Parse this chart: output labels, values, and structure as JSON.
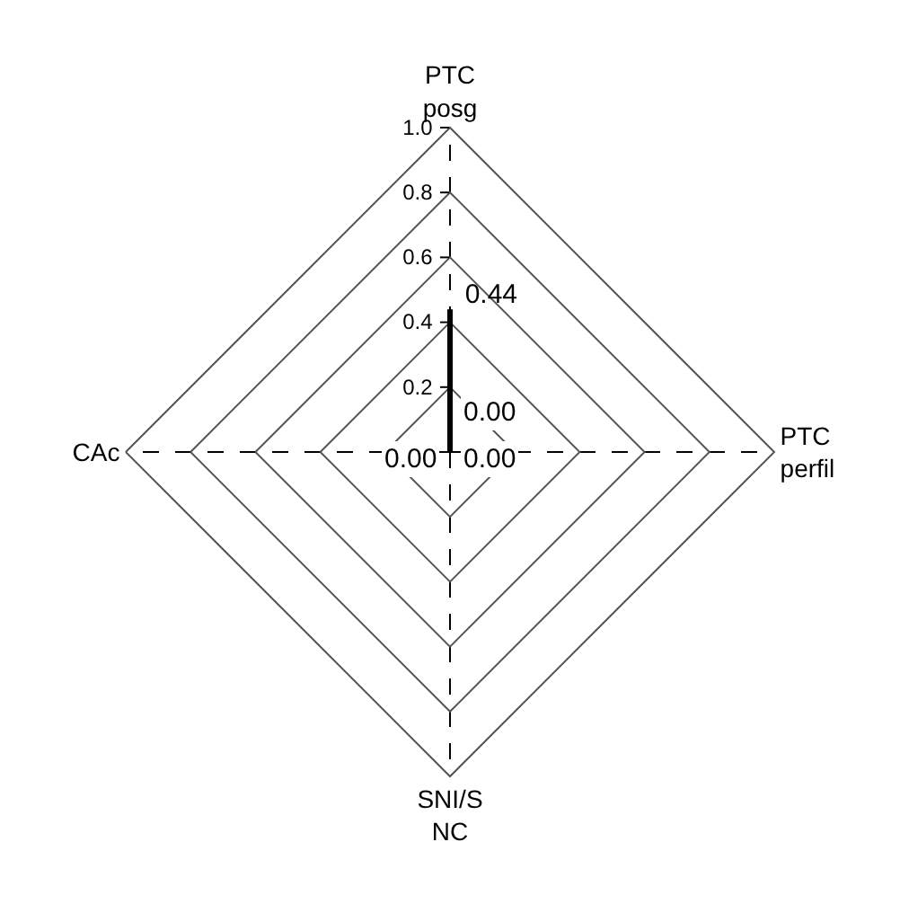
{
  "chart_data": {
    "type": "radar",
    "categories": [
      "PTC\nposg",
      "PTC\nperfil",
      "SNI/S\nNC",
      "CAc"
    ],
    "series": [
      {
        "color": "#000000",
        "values": [
          0.44,
          0.0,
          0.0,
          0.0
        ],
        "value_labels": [
          "0.44",
          "0.00",
          "0.00",
          "0.00"
        ]
      }
    ],
    "ylim": [
      0,
      1
    ],
    "yticks": [
      {
        "value": 0.2,
        "label": "0.2"
      },
      {
        "value": 0.4,
        "label": "0.4"
      },
      {
        "value": 0.6,
        "label": "0.6"
      },
      {
        "value": 0.8,
        "label": "0.8"
      },
      {
        "value": 1.0,
        "label": "1.0"
      }
    ],
    "grid": true,
    "marker": "none"
  }
}
